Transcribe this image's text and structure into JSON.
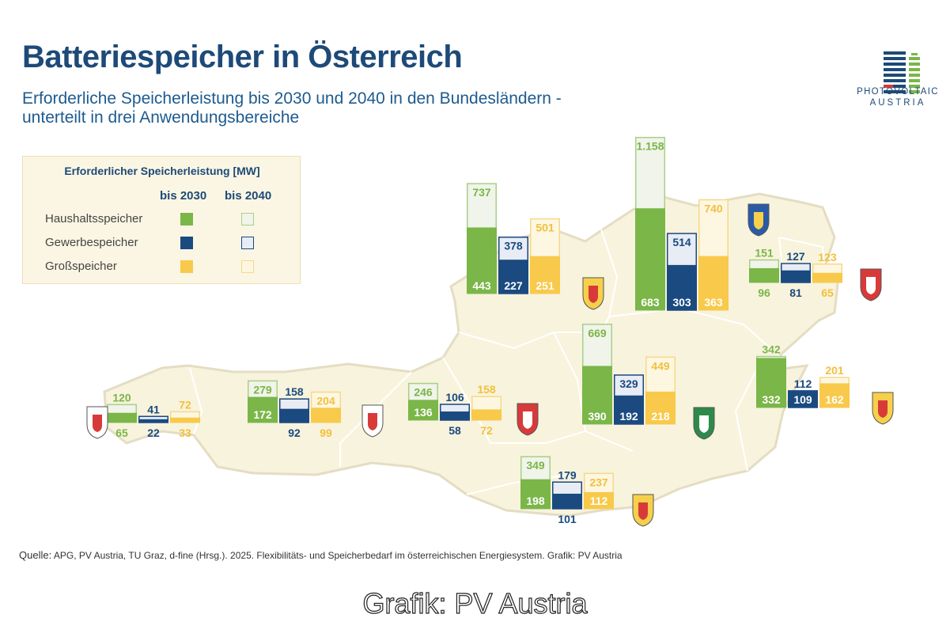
{
  "title": "Batteriespeicher in Österreich",
  "subtitle_line1": "Erforderliche Speicherleistung bis 2030 und 2040 in den Bundesländern -",
  "subtitle_line2": "unterteilt in drei Anwendungsbereiche",
  "logo": {
    "line1": "PHOTOVOLTAIC",
    "line2": "AUSTRIA"
  },
  "legend": {
    "title": "Erforderlicher Speicherleistung [MW]",
    "col_2030": "bis 2030",
    "col_2040": "bis 2040",
    "rows": [
      "Haushaltsspeicher",
      "Gewerbespeicher",
      "Großspeicher"
    ]
  },
  "colors": {
    "haushalt": "#7ab648",
    "gewerbe": "#1a4a80",
    "gross": "#f8c94a",
    "map_fill": "#f8f3dc",
    "title": "#1d4a78"
  },
  "source_label": "Quelle:",
  "source_text": "APG, PV Austria, TU Graz, d-fine (Hrsg.). 2025. Flexibilitäts- und Speicherbedarf im österreichischen Energiesystem. Grafik: PV Austria",
  "credit": "Grafik: PV Austria",
  "chart_data": {
    "type": "bar",
    "unit": "MW",
    "series": [
      {
        "name": "Haushaltsspeicher",
        "key": "haushalt"
      },
      {
        "name": "Gewerbespeicher",
        "key": "gewerbe"
      },
      {
        "name": "Großspeicher",
        "key": "gross"
      }
    ],
    "regions": [
      {
        "icon": "vorarlberg-coat-of-arms-icon",
        "haushalt": [
          65,
          120
        ],
        "gewerbe": [
          22,
          41
        ],
        "gross": [
          33,
          72
        ]
      },
      {
        "icon": "tirol-coat-of-arms-icon",
        "haushalt": [
          172,
          279
        ],
        "gewerbe": [
          92,
          158
        ],
        "gross": [
          99,
          204
        ]
      },
      {
        "icon": "salzburg-coat-of-arms-icon",
        "haushalt": [
          136,
          246
        ],
        "gewerbe": [
          58,
          106
        ],
        "gross": [
          72,
          158
        ]
      },
      {
        "icon": "oberoesterreich-coat-of-arms-icon",
        "haushalt": [
          443,
          737
        ],
        "gewerbe": [
          227,
          378
        ],
        "gross": [
          251,
          501
        ]
      },
      {
        "icon": "niederoesterreich-coat-of-arms-icon",
        "haushalt": [
          683,
          1158
        ],
        "gewerbe": [
          303,
          514
        ],
        "gross": [
          363,
          740
        ]
      },
      {
        "icon": "wien-coat-of-arms-icon",
        "haushalt": [
          96,
          151
        ],
        "gewerbe": [
          81,
          127
        ],
        "gross": [
          65,
          123
        ]
      },
      {
        "icon": "steiermark-coat-of-arms-icon",
        "haushalt": [
          390,
          669
        ],
        "gewerbe": [
          192,
          329
        ],
        "gross": [
          218,
          449
        ]
      },
      {
        "icon": "burgenland-coat-of-arms-icon",
        "haushalt": [
          332,
          342
        ],
        "gewerbe": [
          109,
          112
        ],
        "gross": [
          162,
          201
        ]
      },
      {
        "icon": "kaernten-coat-of-arms-icon",
        "haushalt": [
          198,
          349
        ],
        "gewerbe": [
          101,
          179
        ],
        "gross": [
          112,
          237
        ]
      }
    ],
    "value_labels": {
      "vorarlberg": {
        "haushalt": [
          "65",
          "120"
        ],
        "gewerbe": [
          "22",
          "41"
        ],
        "gross": [
          "33",
          "72"
        ]
      },
      "niederoesterreich_2040_haushalt": "1.158"
    }
  }
}
